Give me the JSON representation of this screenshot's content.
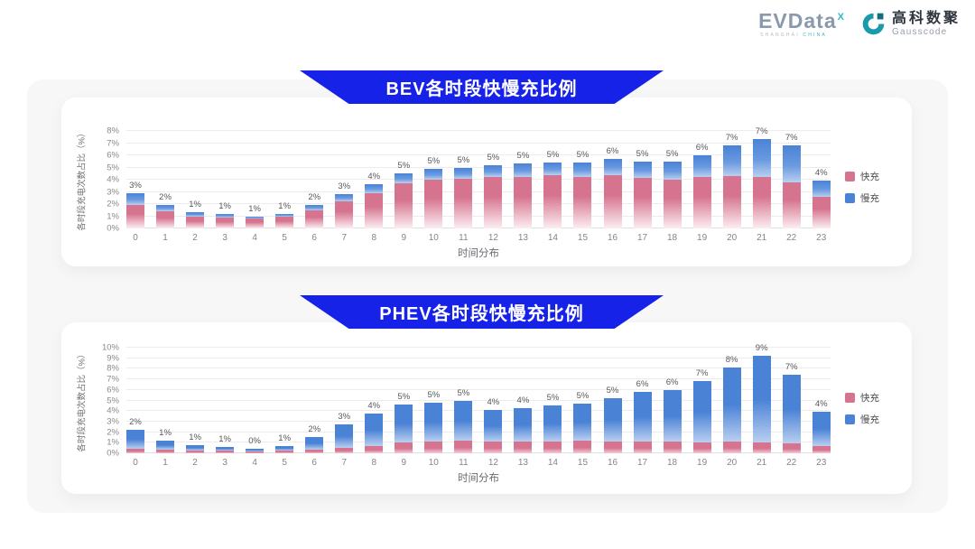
{
  "logo": {
    "evdata": {
      "text": "EVData",
      "sup": "X",
      "tagline1": "SHANGHAI",
      "tagline2": "CHINA"
    },
    "gausscode": {
      "cn": "高科数聚",
      "en": "Gausscode"
    }
  },
  "colors": {
    "ribbon_blue": "#1722e9",
    "fast_pink": "#d6748f",
    "slow_blue": "#4a82d6",
    "panel_gray": "#f7f7f8",
    "card_white": "#ffffff",
    "gausscode_teal": "#1b9aab",
    "evdata_gray": "#8b99ac"
  },
  "chart_data": [
    {
      "type": "bar",
      "stacked": true,
      "title": "BEV各时段快慢充比例",
      "xlabel": "时间分布",
      "ylabel": "各时段充电次数占比（%）",
      "categories": [
        "0",
        "1",
        "2",
        "3",
        "4",
        "5",
        "6",
        "7",
        "8",
        "9",
        "10",
        "11",
        "12",
        "13",
        "14",
        "15",
        "16",
        "17",
        "18",
        "19",
        "20",
        "21",
        "22",
        "23"
      ],
      "series": [
        {
          "name": "快充",
          "color": "#d6748f",
          "values": [
            1.9,
            1.4,
            1.0,
            0.9,
            0.8,
            0.95,
            1.5,
            2.2,
            2.9,
            3.7,
            4.0,
            4.1,
            4.2,
            4.2,
            4.35,
            4.25,
            4.4,
            4.15,
            4.0,
            4.2,
            4.3,
            4.2,
            3.8,
            2.6
          ]
        },
        {
          "name": "慢充",
          "color": "#4a82d6",
          "values": [
            1.0,
            0.5,
            0.3,
            0.25,
            0.2,
            0.25,
            0.4,
            0.6,
            0.75,
            0.85,
            0.9,
            0.9,
            1.0,
            1.1,
            1.05,
            1.15,
            1.3,
            1.3,
            1.45,
            1.8,
            2.5,
            3.1,
            3.0,
            1.3
          ]
        }
      ],
      "bar_labels": [
        "3%",
        "2%",
        "1%",
        "1%",
        "1%",
        "1%",
        "2%",
        "3%",
        "4%",
        "5%",
        "5%",
        "5%",
        "5%",
        "5%",
        "5%",
        "5%",
        "6%",
        "5%",
        "5%",
        "6%",
        "7%",
        "7%",
        "7%",
        "4%"
      ],
      "ylim": [
        0,
        8
      ],
      "y_ticks": [
        "0%",
        "1%",
        "2%",
        "3%",
        "4%",
        "5%",
        "6%",
        "7%",
        "8%"
      ],
      "legend_position": "right",
      "grid": true
    },
    {
      "type": "bar",
      "stacked": true,
      "title": "PHEV各时段快慢充比例",
      "xlabel": "时间分布",
      "ylabel": "各时段充电次数占比（%）",
      "categories": [
        "0",
        "1",
        "2",
        "3",
        "4",
        "5",
        "6",
        "7",
        "8",
        "9",
        "10",
        "11",
        "12",
        "13",
        "14",
        "15",
        "16",
        "17",
        "18",
        "19",
        "20",
        "21",
        "22",
        "23"
      ],
      "series": [
        {
          "name": "快充",
          "color": "#d6748f",
          "values": [
            0.45,
            0.35,
            0.3,
            0.25,
            0.2,
            0.25,
            0.35,
            0.5,
            0.7,
            1.0,
            1.1,
            1.2,
            1.1,
            1.1,
            1.1,
            1.2,
            1.1,
            1.1,
            1.1,
            1.0,
            1.1,
            1.0,
            0.9,
            0.7
          ]
        },
        {
          "name": "慢充",
          "color": "#4a82d6",
          "values": [
            1.75,
            0.85,
            0.5,
            0.35,
            0.25,
            0.45,
            1.15,
            2.2,
            3.1,
            3.6,
            3.7,
            3.8,
            3.0,
            3.2,
            3.4,
            3.5,
            4.1,
            4.7,
            4.9,
            5.8,
            7.0,
            8.2,
            6.5,
            3.2
          ]
        }
      ],
      "bar_labels": [
        "2%",
        "1%",
        "1%",
        "1%",
        "0%",
        "1%",
        "2%",
        "3%",
        "4%",
        "5%",
        "5%",
        "5%",
        "4%",
        "4%",
        "5%",
        "5%",
        "5%",
        "6%",
        "6%",
        "7%",
        "8%",
        "9%",
        "7%",
        "4%"
      ],
      "ylim": [
        0,
        10
      ],
      "y_ticks": [
        "0%",
        "1%",
        "2%",
        "3%",
        "4%",
        "5%",
        "6%",
        "7%",
        "8%",
        "9%",
        "10%"
      ],
      "legend_position": "right",
      "grid": true
    }
  ]
}
